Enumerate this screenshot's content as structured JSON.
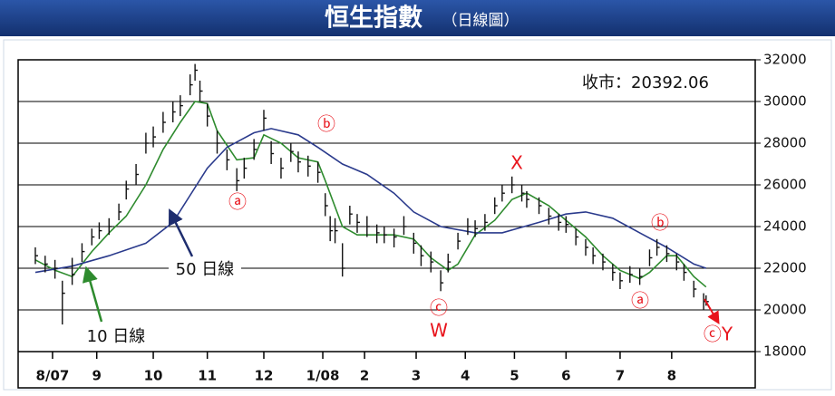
{
  "chart_data": {
    "type": "ohlc",
    "title": "恒生指數",
    "subtitle": "（日線圖）",
    "bar_color": "#111111",
    "grid": true,
    "xlim": [
      0,
      300
    ],
    "ylim": [
      18000,
      32000
    ],
    "yticks": [
      18000,
      20000,
      22000,
      24000,
      26000,
      28000,
      30000,
      32000
    ],
    "xticks": [
      {
        "value": 14,
        "label": "8/07"
      },
      {
        "value": 32,
        "label": "9"
      },
      {
        "value": 55,
        "label": "10"
      },
      {
        "value": 77,
        "label": "11"
      },
      {
        "value": 100,
        "label": "12"
      },
      {
        "value": 124,
        "label": "1/08"
      },
      {
        "value": 141,
        "label": "2"
      },
      {
        "value": 162,
        "label": "3"
      },
      {
        "value": 182,
        "label": "4"
      },
      {
        "value": 202,
        "label": "5"
      },
      {
        "value": 223,
        "label": "6"
      },
      {
        "value": 245,
        "label": "7"
      },
      {
        "value": 266,
        "label": "8"
      }
    ],
    "x": [
      7,
      11,
      15,
      18,
      22,
      26,
      30,
      33,
      37,
      41,
      44,
      48,
      52,
      55,
      59,
      63,
      66,
      70,
      72,
      74,
      77,
      81,
      85,
      89,
      92,
      96,
      100,
      103,
      107,
      111,
      114,
      118,
      122,
      125,
      127,
      129,
      132,
      135,
      138,
      142,
      146,
      149,
      153,
      157,
      161,
      164,
      168,
      172,
      175,
      179,
      183,
      186,
      190,
      194,
      197,
      201,
      205,
      207,
      212,
      216,
      220,
      223,
      227,
      231,
      234,
      238,
      242,
      245,
      249,
      253,
      257,
      260,
      264,
      268,
      271,
      275,
      279,
      280
    ],
    "high": [
      23000,
      22600,
      22400,
      21400,
      22500,
      23200,
      23900,
      24200,
      24400,
      25100,
      26200,
      27000,
      28500,
      28800,
      29500,
      30000,
      30300,
      31300,
      31800,
      31000,
      29900,
      28600,
      27700,
      26800,
      27300,
      28200,
      29600,
      28100,
      27300,
      28000,
      27600,
      27400,
      27100,
      25600,
      24500,
      24400,
      23200,
      25000,
      24600,
      24500,
      24100,
      24000,
      23900,
      24500,
      23700,
      23100,
      22800,
      21900,
      22700,
      23700,
      24400,
      24300,
      24600,
      25400,
      26000,
      26400,
      26000,
      25700,
      25400,
      24900,
      24600,
      24500,
      23900,
      23400,
      23000,
      22700,
      22200,
      21800,
      22100,
      22000,
      22900,
      23400,
      23100,
      22700,
      22200,
      21400,
      20800,
      20700
    ],
    "low": [
      22200,
      21800,
      21500,
      19300,
      21200,
      22300,
      23100,
      23400,
      23600,
      24300,
      25300,
      26000,
      27500,
      27800,
      28500,
      29000,
      29300,
      30300,
      31000,
      30000,
      28800,
      27500,
      26700,
      25700,
      26300,
      27200,
      28600,
      27000,
      26300,
      27100,
      26600,
      26400,
      26100,
      24500,
      23300,
      23200,
      21600,
      24100,
      23700,
      23500,
      23200,
      23200,
      23000,
      23600,
      22700,
      22100,
      21800,
      20900,
      21800,
      22900,
      23600,
      23500,
      23800,
      24600,
      25200,
      25600,
      25200,
      24900,
      24600,
      24100,
      23800,
      23700,
      23100,
      22600,
      22200,
      21900,
      21400,
      21000,
      21300,
      21200,
      22100,
      22600,
      22300,
      21900,
      21400,
      20600,
      20000,
      20200
    ],
    "close": [
      22600,
      22200,
      22000,
      20800,
      21700,
      22800,
      23500,
      23800,
      24000,
      24700,
      25800,
      26500,
      28000,
      28300,
      29000,
      29500,
      29800,
      30800,
      31500,
      30500,
      29300,
      28000,
      27200,
      26200,
      26800,
      27700,
      29200,
      27500,
      26800,
      27600,
      27100,
      26900,
      26600,
      25000,
      23800,
      23800,
      22000,
      24600,
      24200,
      24000,
      23700,
      23600,
      23500,
      24000,
      23200,
      22600,
      22300,
      21300,
      22300,
      23300,
      24000,
      23900,
      24200,
      25000,
      25600,
      26000,
      25600,
      25300,
      25000,
      24500,
      24200,
      24100,
      23500,
      23000,
      22600,
      22300,
      21800,
      21400,
      21700,
      21600,
      22500,
      23000,
      22700,
      22300,
      21800,
      21000,
      20400,
      20400
    ],
    "lines": [
      {
        "name": "10 日線",
        "color": "#2e8b2e",
        "x": [
          7,
          15,
          22,
          30,
          37,
          44,
          52,
          59,
          66,
          72,
          77,
          81,
          89,
          96,
          100,
          107,
          114,
          122,
          125,
          132,
          138,
          146,
          153,
          161,
          168,
          175,
          179,
          186,
          194,
          201,
          207,
          216,
          223,
          231,
          238,
          245,
          253,
          257,
          264,
          268,
          275,
          280
        ],
        "values": [
          22400,
          21900,
          21600,
          22800,
          23700,
          24500,
          26000,
          27700,
          29000,
          30000,
          29900,
          28600,
          27200,
          27300,
          28400,
          28000,
          27300,
          27100,
          26200,
          24000,
          23600,
          23600,
          23600,
          23400,
          22500,
          21900,
          22200,
          23600,
          24300,
          25300,
          25600,
          25000,
          24300,
          23500,
          22600,
          21900,
          21500,
          21800,
          22600,
          22600,
          21600,
          21100
        ]
      },
      {
        "name": "50 日線",
        "color": "#2a3a8c",
        "x": [
          7,
          22,
          37,
          52,
          63,
          70,
          77,
          85,
          96,
          103,
          114,
          122,
          132,
          142,
          153,
          161,
          172,
          186,
          197,
          212,
          223,
          231,
          242,
          253,
          264,
          275,
          280
        ],
        "values": [
          21800,
          22100,
          22600,
          23200,
          24200,
          25500,
          26800,
          27800,
          28500,
          28700,
          28400,
          27800,
          27000,
          26500,
          25600,
          24700,
          24000,
          23700,
          23700,
          24200,
          24600,
          24700,
          24400,
          23700,
          23000,
          22200,
          22000
        ]
      }
    ],
    "close_label": "收市：20392.06",
    "annotations": [
      "ⓐ",
      "ⓑ",
      "ⓒ",
      "W",
      "X",
      "ⓑ",
      "ⓐ",
      "ⓒY"
    ]
  }
}
